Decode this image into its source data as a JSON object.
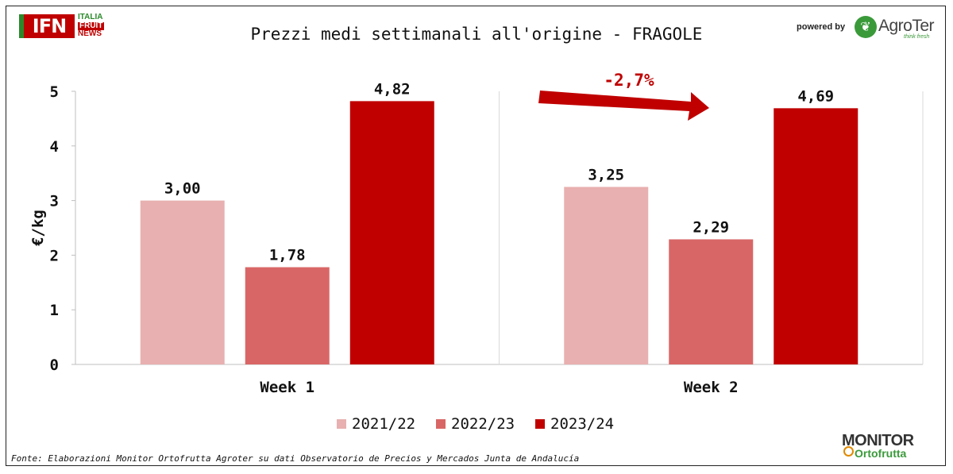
{
  "branding": {
    "ifn_logo": "IFN",
    "ifn_lines": [
      "ITALIA",
      "FRUIT",
      "NEWS"
    ],
    "powered_by": "powered by",
    "agroter_name": "AgroTer",
    "agroter_tagline": "think fresh",
    "monitor_top": "MONITOR",
    "monitor_bottom": "Ortofrutta"
  },
  "source": "Fonte: Elaborazioni Monitor Ortofrutta Agroter su dati Observatorio de Precios y Mercados Junta de Andalucía",
  "chart_data": {
    "type": "bar",
    "title": "Prezzi medi settimanali all'origine - FRAGOLE",
    "xlabel": "",
    "ylabel": "€/kg",
    "ylim": [
      0,
      5
    ],
    "yticks": [
      0,
      1,
      2,
      3,
      4,
      5
    ],
    "grid": false,
    "legend": "bottom",
    "categories": [
      "Week 1",
      "Week 2"
    ],
    "series": [
      {
        "name": "2021/22",
        "values": [
          3.0,
          3.25
        ],
        "labels": [
          "3,00",
          "3,25"
        ],
        "color": "#e8b0b0"
      },
      {
        "name": "2022/23",
        "values": [
          1.78,
          2.29
        ],
        "labels": [
          "1,78",
          "2,29"
        ],
        "color": "#d96666"
      },
      {
        "name": "2023/24",
        "values": [
          4.82,
          4.69
        ],
        "labels": [
          "4,82",
          "4,69"
        ],
        "color": "#c00000"
      }
    ],
    "annotation": {
      "text": "-2,7%",
      "color": "#c00000"
    }
  }
}
